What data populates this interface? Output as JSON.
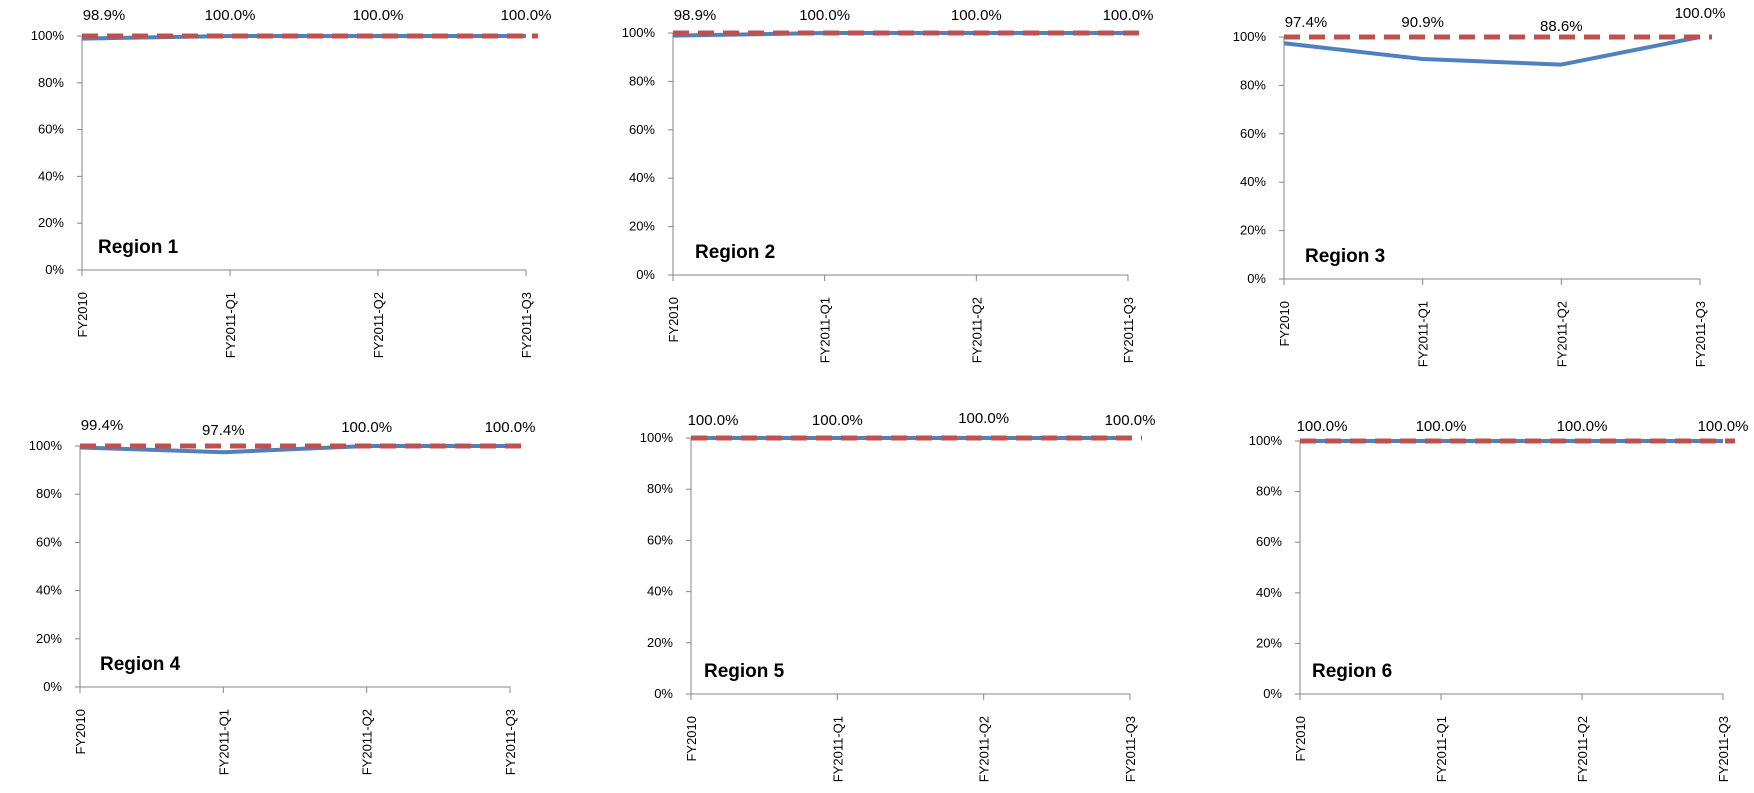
{
  "chart_data": [
    {
      "type": "line",
      "title": "Region 1",
      "categories": [
        "FY2010",
        "FY2011-Q1",
        "FY2011-Q2",
        "FY2011-Q3"
      ],
      "ylim": [
        0,
        100
      ],
      "yticks": [
        "0%",
        "20%",
        "40%",
        "60%",
        "80%",
        "100%"
      ],
      "series": [
        {
          "values": [
            98.9,
            100.0,
            100.0,
            100.0
          ],
          "color": "#4F81BD",
          "style": "solid"
        },
        {
          "values": [
            100,
            100,
            100,
            100
          ],
          "color": "#C0504D",
          "style": "dashed"
        }
      ],
      "data_labels": [
        "98.9%",
        "100.0%",
        "100.0%",
        "100.0%"
      ]
    },
    {
      "type": "line",
      "title": "Region 2",
      "categories": [
        "FY2010",
        "FY2011-Q1",
        "FY2011-Q2",
        "FY2011-Q3"
      ],
      "ylim": [
        0,
        100
      ],
      "yticks": [
        "0%",
        "20%",
        "40%",
        "60%",
        "80%",
        "100%"
      ],
      "series": [
        {
          "values": [
            98.9,
            100.0,
            100.0,
            100.0
          ],
          "color": "#4F81BD",
          "style": "solid"
        },
        {
          "values": [
            100,
            100,
            100,
            100
          ],
          "color": "#C0504D",
          "style": "dashed"
        }
      ],
      "data_labels": [
        "98.9%",
        "100.0%",
        "100.0%",
        "100.0%"
      ]
    },
    {
      "type": "line",
      "title": "Region 3",
      "categories": [
        "FY2010",
        "FY2011-Q1",
        "FY2011-Q2",
        "FY2011-Q3"
      ],
      "ylim": [
        0,
        100
      ],
      "yticks": [
        "0%",
        "20%",
        "40%",
        "60%",
        "80%",
        "100%"
      ],
      "series": [
        {
          "values": [
            97.4,
            90.9,
            88.6,
            100.0
          ],
          "color": "#4F81BD",
          "style": "solid"
        },
        {
          "values": [
            100,
            100,
            100,
            100
          ],
          "color": "#C0504D",
          "style": "dashed"
        }
      ],
      "data_labels": [
        "97.4%",
        "90.9%",
        "88.6%",
        "100.0%"
      ]
    },
    {
      "type": "line",
      "title": "Region 4",
      "categories": [
        "FY2010",
        "FY2011-Q1",
        "FY2011-Q2",
        "FY2011-Q3"
      ],
      "ylim": [
        0,
        100
      ],
      "yticks": [
        "0%",
        "20%",
        "40%",
        "60%",
        "80%",
        "100%"
      ],
      "series": [
        {
          "values": [
            99.4,
            97.4,
            100.0,
            100.0
          ],
          "color": "#4F81BD",
          "style": "solid"
        },
        {
          "values": [
            100,
            100,
            100,
            100
          ],
          "color": "#C0504D",
          "style": "dashed"
        }
      ],
      "data_labels": [
        "99.4%",
        "97.4%",
        "100.0%",
        "100.0%"
      ]
    },
    {
      "type": "line",
      "title": "Region 5",
      "categories": [
        "FY2010",
        "FY2011-Q1",
        "FY2011-Q2",
        "FY2011-Q3"
      ],
      "ylim": [
        0,
        100
      ],
      "yticks": [
        "0%",
        "20%",
        "40%",
        "60%",
        "80%",
        "100%"
      ],
      "series": [
        {
          "values": [
            100.0,
            100.0,
            100.0,
            100.0
          ],
          "color": "#4F81BD",
          "style": "solid"
        },
        {
          "values": [
            100,
            100,
            100,
            100
          ],
          "color": "#C0504D",
          "style": "dashed"
        }
      ],
      "data_labels": [
        "100.0%",
        "100.0%",
        "100.0%",
        "100.0%"
      ]
    },
    {
      "type": "line",
      "title": "Region 6",
      "categories": [
        "FY2010",
        "FY2011-Q1",
        "FY2011-Q2",
        "FY2011-Q3"
      ],
      "ylim": [
        0,
        100
      ],
      "yticks": [
        "0%",
        "20%",
        "40%",
        "60%",
        "80%",
        "100%"
      ],
      "series": [
        {
          "values": [
            100.0,
            100.0,
            100.0,
            100.0
          ],
          "color": "#4F81BD",
          "style": "solid"
        },
        {
          "values": [
            100,
            100,
            100,
            100
          ],
          "color": "#C0504D",
          "style": "dashed"
        }
      ],
      "data_labels": [
        "100.0%",
        "100.0%",
        "100.0%",
        "100.0%"
      ]
    }
  ]
}
